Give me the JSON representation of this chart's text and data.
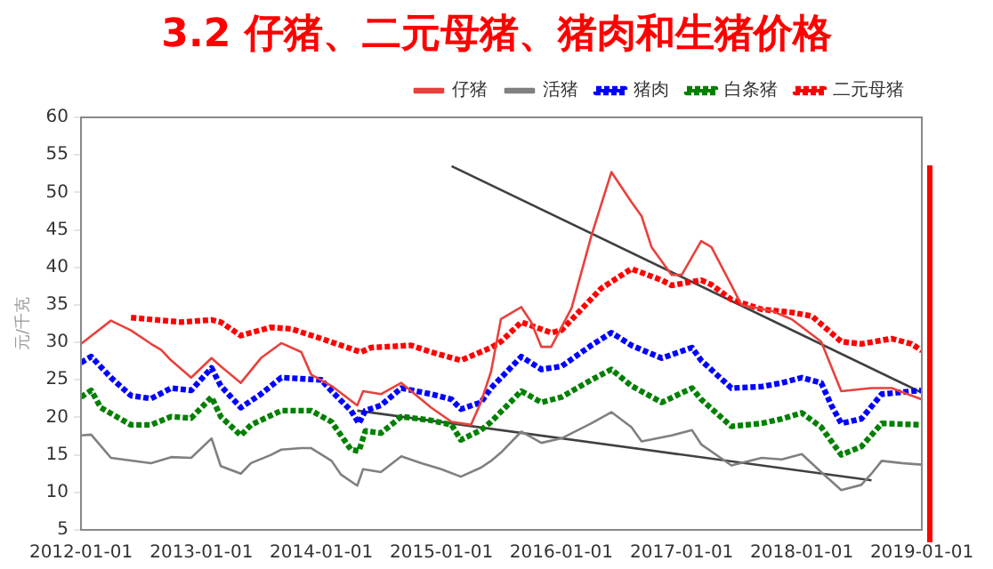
{
  "chart_data": {
    "type": "line",
    "title": "3.2  仔猪、二元母猪、猪肉和生猪价格",
    "ylabel": "元/千克",
    "xlim": [
      "2012-01-01",
      "2019-01-01"
    ],
    "xticks": [
      "2012-01-01",
      "2013-01-01",
      "2014-01-01",
      "2015-01-01",
      "2016-01-01",
      "2017-01-01",
      "2018-01-01",
      "2019-01-01"
    ],
    "ylim": [
      5,
      60
    ],
    "yticks": [
      5,
      10,
      15,
      20,
      25,
      30,
      35,
      40,
      45,
      50,
      55,
      60
    ],
    "grid": false,
    "legend": "top",
    "series": [
      {
        "name": "仔猪",
        "color": "#e8413c",
        "line_style": "solid",
        "x": [
          "2012-01",
          "2012-04",
          "2012-06",
          "2012-08",
          "2012-09",
          "2012-10",
          "2012-12",
          "2013-02",
          "2013-03",
          "2013-05",
          "2013-07",
          "2013-09",
          "2013-11",
          "2013-12",
          "2014-02",
          "2014-04-20",
          "2014-05-08",
          "2014-07",
          "2014-09",
          "2014-12",
          "2015-02",
          "2015-04",
          "2015-05",
          "2015-06",
          "2015-07",
          "2015-09",
          "2015-10",
          "2015-11",
          "2015-12",
          "2016-02",
          "2016-04",
          "2016-06",
          "2016-08",
          "2016-09",
          "2016-10",
          "2016-12",
          "2017-01",
          "2017-03",
          "2017-04",
          "2017-06",
          "2017-07",
          "2017-10",
          "2017-12",
          "2018-03",
          "2018-05",
          "2018-08",
          "2018-10",
          "2019-01"
        ],
        "values": [
          29.8,
          32.9,
          31.6,
          29.8,
          29,
          27.6,
          25.3,
          27.9,
          26.8,
          24.6,
          27.9,
          29.9,
          28.7,
          25.7,
          24.2,
          21.6,
          23.5,
          23.1,
          24.6,
          21.3,
          19.4,
          19,
          22,
          26.1,
          33.1,
          34.7,
          32.7,
          29.4,
          29.4,
          34.6,
          44.2,
          52.7,
          48.7,
          46.8,
          42.7,
          39,
          39,
          43.5,
          42.7,
          37.6,
          35,
          34.2,
          33.1,
          30.1,
          23.5,
          23.9,
          23.9,
          22.4
        ]
      },
      {
        "name": "活猪",
        "color": "#808080",
        "line_style": "solid",
        "x": [
          "2012-01",
          "2012-02",
          "2012-04",
          "2012-08",
          "2012-10",
          "2012-12",
          "2013-02",
          "2013-03",
          "2013-05",
          "2013-06",
          "2013-08",
          "2013-09",
          "2013-11",
          "2013-12",
          "2014-02",
          "2014-03",
          "2014-04-20",
          "2014-05-08",
          "2014-07",
          "2014-09",
          "2014-11",
          "2015-01",
          "2015-03",
          "2015-05",
          "2015-06",
          "2015-07",
          "2015-09",
          "2015-11",
          "2016-01",
          "2016-04",
          "2016-06",
          "2016-08",
          "2016-09",
          "2016-12",
          "2017-02",
          "2017-03",
          "2017-06",
          "2017-09",
          "2017-11",
          "2018-01",
          "2018-03",
          "2018-05",
          "2018-07",
          "2018-08",
          "2018-09",
          "2018-11",
          "2019-01"
        ],
        "values": [
          17.6,
          17.7,
          14.6,
          13.9,
          14.7,
          14.6,
          17.2,
          13.5,
          12.5,
          13.9,
          15,
          15.7,
          15.9,
          15.9,
          14.2,
          12.4,
          10.9,
          13.1,
          12.7,
          14.8,
          13.9,
          13.1,
          12.1,
          13.3,
          14.2,
          15.3,
          18.1,
          16.6,
          17.2,
          19.2,
          20.7,
          18.7,
          16.8,
          17.6,
          18.3,
          16.4,
          13.6,
          14.6,
          14.4,
          15.1,
          12.7,
          10.3,
          11,
          12.5,
          14.2,
          13.9,
          13.7
        ]
      },
      {
        "name": "猪肉",
        "color": "#0000ff",
        "line_style": "dotted",
        "x": [
          "2012-01",
          "2012-02",
          "2012-04",
          "2012-06",
          "2012-08",
          "2012-10",
          "2012-12",
          "2013-02",
          "2013-03",
          "2013-05",
          "2013-07",
          "2013-09",
          "2014-01",
          "2014-02",
          "2014-04-01",
          "2014-04-25",
          "2014-05-15",
          "2014-07",
          "2014-09",
          "2014-12",
          "2015-02",
          "2015-03",
          "2015-05",
          "2015-06",
          "2015-09",
          "2015-11",
          "2016-01",
          "2016-04",
          "2016-06",
          "2016-08",
          "2016-11",
          "2017-02",
          "2017-03",
          "2017-06",
          "2017-09",
          "2017-11",
          "2018-01",
          "2018-03",
          "2018-04",
          "2018-05",
          "2018-07",
          "2018-09",
          "2019-01"
        ],
        "values": [
          27.3,
          28.1,
          25.3,
          22.9,
          22.5,
          23.9,
          23.6,
          26.6,
          24.2,
          21.3,
          23.1,
          25.3,
          25,
          23.5,
          20.9,
          19.2,
          20.9,
          21.6,
          23.9,
          23.1,
          22.4,
          21.1,
          22,
          23.9,
          28.1,
          26.4,
          26.8,
          29.6,
          31.3,
          29.6,
          27.9,
          29.3,
          27.6,
          23.9,
          24.1,
          24.6,
          25.3,
          24.6,
          21.6,
          19.2,
          19.8,
          23.1,
          23.6
        ]
      },
      {
        "name": "白条猪",
        "color": "#008000",
        "line_style": "dotted",
        "x": [
          "2012-01",
          "2012-02",
          "2012-03",
          "2012-06",
          "2012-08",
          "2012-10",
          "2012-12",
          "2013-02",
          "2013-03",
          "2013-05",
          "2013-06",
          "2013-09",
          "2013-12",
          "2014-02",
          "2014-04-01",
          "2014-04-25",
          "2014-05-15",
          "2014-07",
          "2014-09",
          "2014-12",
          "2015-02",
          "2015-03",
          "2015-05",
          "2015-06",
          "2015-09",
          "2015-11",
          "2016-01",
          "2016-04",
          "2016-06",
          "2016-08",
          "2016-11",
          "2017-02",
          "2017-03",
          "2017-06",
          "2017-09",
          "2017-11",
          "2018-01",
          "2018-03",
          "2018-05",
          "2018-07",
          "2018-09",
          "2019-01"
        ],
        "values": [
          22.7,
          23.6,
          21.3,
          19,
          19,
          20.1,
          19.9,
          22.7,
          20.1,
          17.6,
          19,
          20.9,
          20.9,
          19.4,
          15.7,
          15.5,
          18.2,
          17.9,
          20.1,
          19.6,
          19,
          17,
          18.3,
          19.4,
          23.5,
          22,
          22.7,
          25,
          26.4,
          24.2,
          22,
          23.9,
          22.4,
          18.8,
          19.2,
          19.8,
          20.6,
          18.7,
          15,
          16.1,
          19.2,
          19
        ]
      },
      {
        "name": "二元母猪",
        "color": "#ff0000",
        "line_style": "dotted",
        "x": [
          "2012-06",
          "2012-11",
          "2013-02",
          "2013-03",
          "2013-05",
          "2013-06",
          "2013-08",
          "2013-10",
          "2014-01",
          "2014-05",
          "2014-06",
          "2014-10",
          "2014-12",
          "2015-03",
          "2015-06",
          "2015-07",
          "2015-09",
          "2015-12",
          "2016-01",
          "2016-05",
          "2016-08",
          "2016-11",
          "2016-12",
          "2017-03",
          "2017-04",
          "2017-06",
          "2017-09",
          "2017-12",
          "2018-02",
          "2018-05",
          "2018-07",
          "2018-10",
          "2018-12",
          "2019-01"
        ],
        "values": [
          33.3,
          32.7,
          33,
          32.7,
          30.9,
          31.3,
          32,
          31.8,
          30.5,
          28.7,
          29.3,
          29.6,
          28.7,
          27.6,
          29.3,
          30.1,
          32.7,
          31.3,
          31.6,
          37.2,
          39.8,
          38.3,
          37.6,
          38.3,
          37.7,
          35.7,
          34.4,
          34,
          33.5,
          30.1,
          29.8,
          30.5,
          29.8,
          28.9
        ]
      },
      {
        "type": "line",
        "color": "#404040",
        "line_style": "solid",
        "x": [
          "2015-02",
          "2019-01"
        ],
        "values": [
          53.5,
          23.3
        ]
      },
      {
        "type": "line",
        "color": "#404040",
        "line_style": "solid",
        "x": [
          "2014-04-20",
          "2018-08"
        ],
        "values": [
          20.9,
          11.6
        ]
      }
    ]
  }
}
